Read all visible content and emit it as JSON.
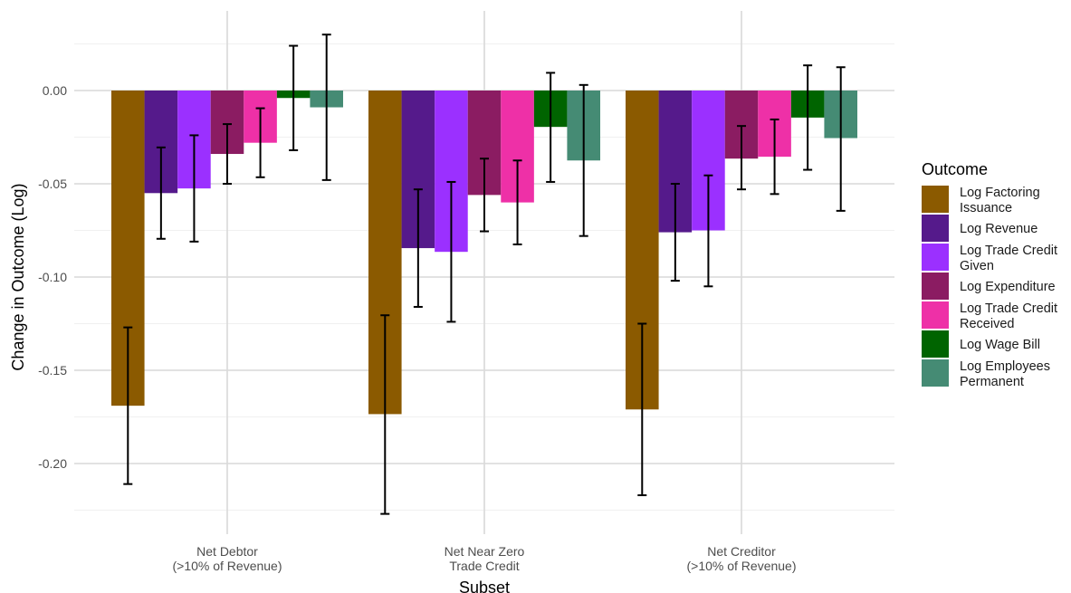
{
  "chart_data": {
    "type": "bar",
    "xlabel": "Subset",
    "ylabel": "Change in Outcome (Log)",
    "ylim": [
      -0.228,
      0.03
    ],
    "yticks": [
      0.0,
      -0.05,
      -0.1,
      -0.15,
      -0.2
    ],
    "ytick_labels": [
      "0.00",
      "-0.05",
      "-0.10",
      "-0.15",
      "-0.20"
    ],
    "grid": true,
    "categories": [
      [
        "Net Debtor",
        "(>10% of Revenue)"
      ],
      [
        "Net Near Zero",
        "Trade Credit"
      ],
      [
        "Net Creditor",
        "(>10% of Revenue)"
      ]
    ],
    "legend": {
      "title": "Outcome",
      "position": "right"
    },
    "series": [
      {
        "name": [
          "Log Factoring",
          "Issuance"
        ],
        "color": "#8B5A00",
        "values": [
          -0.169,
          -0.1735,
          -0.171
        ],
        "ci_low": [
          -0.211,
          -0.227,
          -0.217
        ],
        "ci_high": [
          -0.127,
          -0.1205,
          -0.125
        ]
      },
      {
        "name": [
          "Log Revenue"
        ],
        "color": "#551A8B",
        "values": [
          -0.055,
          -0.0845,
          -0.076
        ],
        "ci_low": [
          -0.0795,
          -0.116,
          -0.102
        ],
        "ci_high": [
          -0.0305,
          -0.053,
          -0.05
        ]
      },
      {
        "name": [
          "Log Trade Credit",
          "Given"
        ],
        "color": "#9B30FF",
        "values": [
          -0.0525,
          -0.0865,
          -0.075
        ],
        "ci_low": [
          -0.081,
          -0.124,
          -0.105
        ],
        "ci_high": [
          -0.024,
          -0.049,
          -0.0455
        ]
      },
      {
        "name": [
          "Log Expenditure"
        ],
        "color": "#8B1C62",
        "values": [
          -0.034,
          -0.056,
          -0.0365
        ],
        "ci_low": [
          -0.05,
          -0.0755,
          -0.053
        ],
        "ci_high": [
          -0.018,
          -0.0365,
          -0.019
        ]
      },
      {
        "name": [
          "Log Trade Credit",
          "Received"
        ],
        "color": "#EE30A7",
        "values": [
          -0.028,
          -0.06,
          -0.0355
        ],
        "ci_low": [
          -0.0465,
          -0.0825,
          -0.0555
        ],
        "ci_high": [
          -0.0095,
          -0.0375,
          -0.0155
        ]
      },
      {
        "name": [
          "Log Wage Bill"
        ],
        "color": "#006400",
        "values": [
          -0.004,
          -0.0195,
          -0.0145
        ],
        "ci_low": [
          -0.032,
          -0.049,
          -0.0425
        ],
        "ci_high": [
          0.024,
          0.0095,
          0.0135
        ]
      },
      {
        "name": [
          "Log Employees",
          "Permanent"
        ],
        "color": "#458B74",
        "values": [
          -0.009,
          -0.0375,
          -0.0255
        ],
        "ci_low": [
          -0.048,
          -0.078,
          -0.0645
        ],
        "ci_high": [
          0.03,
          0.003,
          0.0125
        ]
      }
    ]
  }
}
